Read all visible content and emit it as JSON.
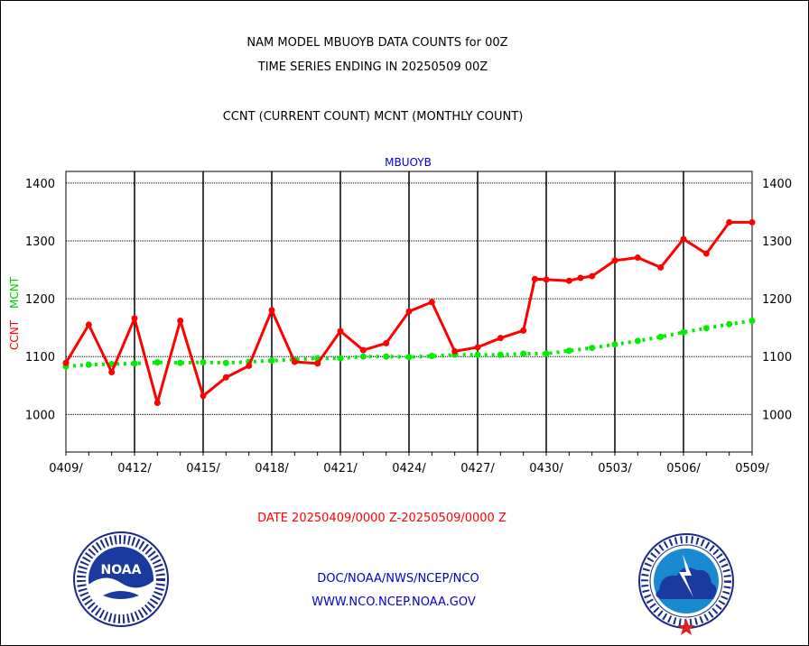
{
  "header": {
    "line1": "NAM MODEL MBUOYB DATA COUNTS for 00Z",
    "line2": "TIME SERIES ENDING IN 20250509 00Z",
    "line3": "CCNT (CURRENT COUNT) MCNT (MONTHLY COUNT)"
  },
  "footer": {
    "date_range": "DATE 20250409/0000 Z-20250509/0000 Z",
    "link1": "DOC/NOAA/NWS/NCEP/NCO",
    "link2": "WWW.NCO.NCEP.NOAA.GOV"
  },
  "logos": {
    "noaa": {
      "icon": "noaa-logo",
      "text": "NOAA",
      "ring_text": "NATIONAL OCEANIC AND ATMOSPHERIC ADMINISTRATION · U.S. DEPARTMENT OF COMMERCE"
    },
    "nws": {
      "icon": "nws-logo",
      "ring_text": "NATIONAL WEATHER SERVICE"
    }
  },
  "colors": {
    "ccnt": "#ff0000",
    "mcnt": "#00ee00",
    "title": "#0000cc",
    "date": "#ff0000",
    "links": "#0000cc"
  },
  "chart_data": {
    "type": "line",
    "title": "MBUOYB",
    "ylabel_left_1": "CCNT",
    "ylabel_left_2": "MCNT",
    "ylim": [
      935,
      1420
    ],
    "yticks": [
      1000,
      1100,
      1200,
      1300,
      1400
    ],
    "xlim": [
      0,
      30
    ],
    "xtick_labels": [
      "0409/",
      "0412/",
      "0415/",
      "0418/",
      "0421/",
      "0424/",
      "0427/",
      "0430/",
      "0503/",
      "0506/",
      "0509/"
    ],
    "grid": true,
    "series": [
      {
        "name": "CCNT",
        "x": [
          0,
          1,
          2,
          3,
          4,
          5,
          6,
          7,
          8,
          9,
          10,
          11,
          12,
          13,
          14,
          15,
          16,
          17,
          18,
          19,
          20,
          20.5,
          21,
          22,
          22.5,
          23,
          24,
          25,
          26,
          27,
          28,
          29,
          30
        ],
        "values": [
          1089,
          1155,
          1073,
          1166,
          1020,
          1162,
          1032,
          1064,
          1084,
          1180,
          1091,
          1088,
          1144,
          1111,
          1123,
          1178,
          1194,
          1109,
          1116,
          1132,
          1145,
          1234,
          1233,
          1231,
          1236,
          1239,
          1266,
          1271,
          1254,
          1303,
          1278,
          1332,
          1332
        ]
      },
      {
        "name": "MCNT",
        "x": [
          0,
          1,
          2,
          3,
          4,
          5,
          6,
          7,
          8,
          9,
          10,
          11,
          12,
          13,
          14,
          15,
          16,
          17,
          18,
          19,
          20,
          21,
          22,
          23,
          24,
          25,
          26,
          27,
          28,
          29,
          30
        ],
        "values": [
          1083,
          1086,
          1087,
          1088,
          1090,
          1089,
          1090,
          1089,
          1091,
          1093,
          1095,
          1097,
          1097,
          1100,
          1100,
          1099,
          1101,
          1103,
          1103,
          1103,
          1105,
          1105,
          1110,
          1115,
          1121,
          1127,
          1134,
          1142,
          1149,
          1156,
          1162
        ]
      }
    ]
  }
}
